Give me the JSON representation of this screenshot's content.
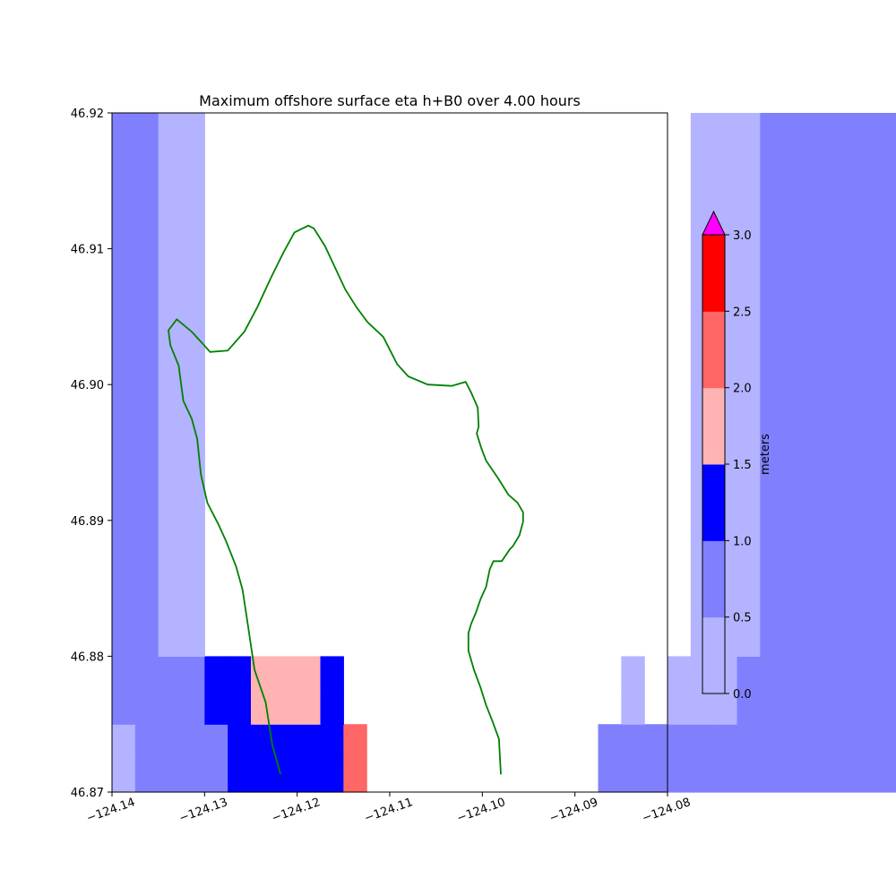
{
  "chart_data": {
    "type": "heatmap",
    "title": "Maximum offshore surface eta h+B0 over 4.00 hours",
    "xlim": [
      -124.14,
      -124.08
    ],
    "ylim": [
      46.87,
      46.92
    ],
    "x_ticks": [
      "−124.14",
      "−124.13",
      "−124.12",
      "−124.11",
      "−124.10",
      "−124.09",
      "−124.08"
    ],
    "y_ticks": [
      "46.87",
      "46.88",
      "46.89",
      "46.90",
      "46.91",
      "46.92"
    ],
    "x_tick_values": [
      -124.14,
      -124.13,
      -124.12,
      -124.11,
      -124.1,
      -124.09,
      -124.08
    ],
    "y_tick_values": [
      46.87,
      46.88,
      46.89,
      46.9,
      46.91,
      46.92
    ],
    "grid": false,
    "colorbar": {
      "label": "meters",
      "levels": [
        0.0,
        0.5,
        1.0,
        1.5,
        2.0,
        2.5,
        3.0
      ],
      "tick_labels": [
        "0.0",
        "0.5",
        "1.0",
        "1.5",
        "2.0",
        "2.5",
        "3.0"
      ],
      "colors": [
        "#b3b3ff",
        "#8080ff",
        "#0000ff",
        "#ffb3b3",
        "#ff6666",
        "#ff0000"
      ],
      "over_color": "#ff00ff",
      "extend": "max",
      "placement": "right"
    },
    "grid_x0": -124.14,
    "grid_y0": 46.87,
    "cell_dx": 0.0025,
    "cell_dy": 0.0025,
    "cell_rows": [
      "1222233333500000000002222222222222222222",
      "1222233333500000000002222222222222222222",
      "2222334443000000000000101112222222222222",
      "2222334443000000000000101112222222222222",
      "2211000000000000000000000111222222222222",
      "2211000000000000000000000111222222222222",
      "2211000000000000000000000111222222222222",
      "2211000000000000000000000111222222222222",
      "2211000000000000000000000111222222222222",
      "2211000000000000000000000111222222222222",
      "2211000000000000000000000111222222222222",
      "2211000000000000000000000111222222222222",
      "2211000000000000000000000111222222222222",
      "2211000000000000000000000111222222222222",
      "2211000000000000000000000111222222222222",
      "2211000000000000000000000111222222222222",
      "2211000000000000000000000111222222222222",
      "2211000000000000000000000111222222222222",
      "2211000000000000000000000111222222222222",
      "2211000000000000000000000111222222222222"
    ],
    "shoreline": [
      [
        -124.1218,
        46.8713
      ],
      [
        -124.1227,
        46.8735
      ],
      [
        -124.1234,
        46.8766
      ],
      [
        -124.1246,
        46.879
      ],
      [
        -124.1253,
        46.8822
      ],
      [
        -124.1259,
        46.8849
      ],
      [
        -124.1266,
        46.8866
      ],
      [
        -124.1277,
        46.8885
      ],
      [
        -124.1285,
        46.8897
      ],
      [
        -124.1297,
        46.8913
      ],
      [
        -124.1304,
        46.8934
      ],
      [
        -124.1308,
        46.896
      ],
      [
        -124.1314,
        46.8975
      ],
      [
        -124.1323,
        46.8988
      ],
      [
        -124.1328,
        46.9014
      ],
      [
        -124.1337,
        46.9029
      ],
      [
        -124.1339,
        46.904
      ],
      [
        -124.133,
        46.9048
      ],
      [
        -124.1314,
        46.9039
      ],
      [
        -124.1302,
        46.903
      ],
      [
        -124.1294,
        46.9024
      ],
      [
        -124.1275,
        46.9025
      ],
      [
        -124.1257,
        46.9039
      ],
      [
        -124.1243,
        46.9057
      ],
      [
        -124.1228,
        46.9079
      ],
      [
        -124.1215,
        46.9097
      ],
      [
        -124.1203,
        46.9112
      ],
      [
        -124.1188,
        46.9117
      ],
      [
        -124.1182,
        46.9115
      ],
      [
        -124.117,
        46.9102
      ],
      [
        -124.1159,
        46.9086
      ],
      [
        -124.1148,
        46.907
      ],
      [
        -124.1136,
        46.9057
      ],
      [
        -124.1124,
        46.9046
      ],
      [
        -124.1107,
        46.9035
      ],
      [
        -124.1098,
        46.9023
      ],
      [
        -124.1092,
        46.9015
      ],
      [
        -124.108,
        46.9006
      ],
      [
        -124.1059,
        46.9
      ],
      [
        -124.1033,
        46.8999
      ],
      [
        -124.1018,
        46.9002
      ],
      [
        -124.1012,
        46.8994
      ],
      [
        -124.1005,
        46.8983
      ],
      [
        -124.1004,
        46.8969
      ],
      [
        -124.1006,
        46.8964
      ],
      [
        -124.1001,
        46.8953
      ],
      [
        -124.0996,
        46.8944
      ],
      [
        -124.0983,
        46.8931
      ],
      [
        -124.0972,
        46.8919
      ],
      [
        -124.0962,
        46.8913
      ],
      [
        -124.0956,
        46.8906
      ],
      [
        -124.0956,
        46.8899
      ],
      [
        -124.096,
        46.8889
      ],
      [
        -124.0967,
        46.8881
      ],
      [
        -124.097,
        46.8879
      ],
      [
        -124.0979,
        46.887
      ],
      [
        -124.0988,
        46.887
      ],
      [
        -124.0992,
        46.8864
      ],
      [
        -124.0996,
        46.8851
      ],
      [
        -124.1002,
        46.8842
      ],
      [
        -124.1007,
        46.8832
      ],
      [
        -124.1012,
        46.8824
      ],
      [
        -124.1015,
        46.8817
      ],
      [
        -124.1015,
        46.8804
      ],
      [
        -124.1009,
        46.879
      ],
      [
        -124.1002,
        46.8777
      ],
      [
        -124.0996,
        46.8764
      ],
      [
        -124.0989,
        46.8752
      ],
      [
        -124.0982,
        46.8739
      ],
      [
        -124.0981,
        46.8725
      ],
      [
        -124.098,
        46.8713
      ]
    ],
    "shoreline_color": "#008000"
  }
}
